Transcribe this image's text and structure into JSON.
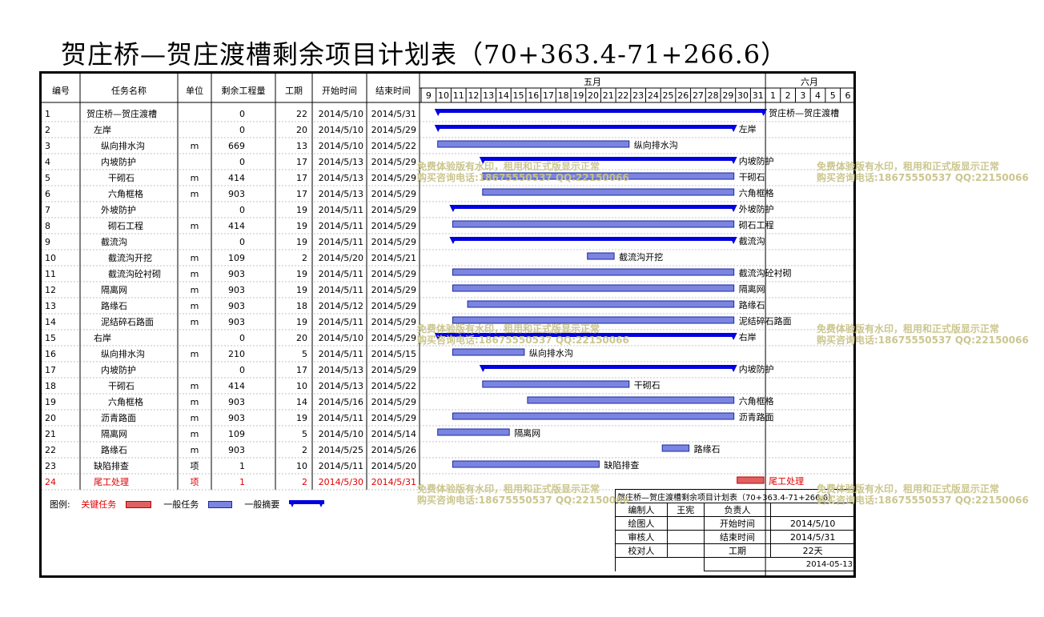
{
  "title": "贺庄桥—贺庄渡槽剩余项目计划表（70+363.4-71+266.6）",
  "columns": [
    "编号",
    "任务名称",
    "单位",
    "剩余工程量",
    "工期",
    "开始时间",
    "结束时间"
  ],
  "months": [
    "五月",
    "六月"
  ],
  "days": [
    9,
    10,
    11,
    12,
    13,
    14,
    15,
    16,
    17,
    18,
    19,
    20,
    21,
    22,
    23,
    24,
    25,
    26,
    27,
    28,
    29,
    30,
    31,
    1,
    2,
    3,
    4,
    5,
    6
  ],
  "colors": {
    "summary": "#0000e0",
    "normal_fill": "#7b84e0",
    "normal_border": "#1a2aa0",
    "critical": "#e00000",
    "watermark": "#c9c48a"
  },
  "chart_data": {
    "type": "gantt",
    "tasks": [
      {
        "id": "1",
        "name": "贺庄桥—贺庄渡槽",
        "unit": "",
        "qty": "0",
        "duration": "22",
        "start": "2014/5/10",
        "end": "2014/5/31",
        "kind": "summary",
        "indent": 0,
        "label": "贺庄桥—贺庄渡槽"
      },
      {
        "id": "2",
        "name": "左岸",
        "unit": "",
        "qty": "0",
        "duration": "20",
        "start": "2014/5/10",
        "end": "2014/5/29",
        "kind": "summary",
        "indent": 1,
        "label": "左岸"
      },
      {
        "id": "3",
        "name": "纵向排水沟",
        "unit": "m",
        "qty": "669",
        "duration": "13",
        "start": "2014/5/10",
        "end": "2014/5/22",
        "kind": "normal",
        "indent": 2,
        "label": "纵向排水沟"
      },
      {
        "id": "4",
        "name": "内坡防护",
        "unit": "",
        "qty": "0",
        "duration": "17",
        "start": "2014/5/13",
        "end": "2014/5/29",
        "kind": "summary",
        "indent": 2,
        "label": "内坡防护"
      },
      {
        "id": "5",
        "name": "干砌石",
        "unit": "m",
        "qty": "414",
        "duration": "17",
        "start": "2014/5/13",
        "end": "2014/5/29",
        "kind": "normal",
        "indent": 3,
        "label": "干砌石"
      },
      {
        "id": "6",
        "name": "六角框格",
        "unit": "m",
        "qty": "903",
        "duration": "17",
        "start": "2014/5/13",
        "end": "2014/5/29",
        "kind": "normal",
        "indent": 3,
        "label": "六角框格"
      },
      {
        "id": "7",
        "name": "外坡防护",
        "unit": "",
        "qty": "0",
        "duration": "19",
        "start": "2014/5/11",
        "end": "2014/5/29",
        "kind": "summary",
        "indent": 2,
        "label": "外坡防护"
      },
      {
        "id": "8",
        "name": "砌石工程",
        "unit": "m",
        "qty": "414",
        "duration": "19",
        "start": "2014/5/11",
        "end": "2014/5/29",
        "kind": "normal",
        "indent": 3,
        "label": "砌石工程"
      },
      {
        "id": "9",
        "name": "截流沟",
        "unit": "",
        "qty": "0",
        "duration": "19",
        "start": "2014/5/11",
        "end": "2014/5/29",
        "kind": "summary",
        "indent": 2,
        "label": "截流沟"
      },
      {
        "id": "10",
        "name": "截流沟开挖",
        "unit": "m",
        "qty": "109",
        "duration": "2",
        "start": "2014/5/20",
        "end": "2014/5/21",
        "kind": "normal",
        "indent": 3,
        "label": "截流沟开挖"
      },
      {
        "id": "11",
        "name": "截流沟砼衬砌",
        "unit": "m",
        "qty": "903",
        "duration": "19",
        "start": "2014/5/11",
        "end": "2014/5/29",
        "kind": "normal",
        "indent": 3,
        "label": "截流沟砼衬砌"
      },
      {
        "id": "12",
        "name": "隔离网",
        "unit": "m",
        "qty": "903",
        "duration": "19",
        "start": "2014/5/11",
        "end": "2014/5/29",
        "kind": "normal",
        "indent": 2,
        "label": "隔离网"
      },
      {
        "id": "13",
        "name": "路缘石",
        "unit": "m",
        "qty": "903",
        "duration": "18",
        "start": "2014/5/12",
        "end": "2014/5/29",
        "kind": "normal",
        "indent": 2,
        "label": "路缘石"
      },
      {
        "id": "14",
        "name": "泥结碎石路面",
        "unit": "m",
        "qty": "903",
        "duration": "19",
        "start": "2014/5/11",
        "end": "2014/5/29",
        "kind": "normal",
        "indent": 2,
        "label": "泥结碎石路面"
      },
      {
        "id": "15",
        "name": "右岸",
        "unit": "",
        "qty": "0",
        "duration": "20",
        "start": "2014/5/10",
        "end": "2014/5/29",
        "kind": "summary",
        "indent": 1,
        "label": "右岸"
      },
      {
        "id": "16",
        "name": "纵向排水沟",
        "unit": "m",
        "qty": "210",
        "duration": "5",
        "start": "2014/5/11",
        "end": "2014/5/15",
        "kind": "normal",
        "indent": 2,
        "label": "纵向排水沟"
      },
      {
        "id": "17",
        "name": "内坡防护",
        "unit": "",
        "qty": "0",
        "duration": "17",
        "start": "2014/5/13",
        "end": "2014/5/29",
        "kind": "summary",
        "indent": 2,
        "label": "内坡防护"
      },
      {
        "id": "18",
        "name": "干砌石",
        "unit": "m",
        "qty": "414",
        "duration": "10",
        "start": "2014/5/13",
        "end": "2014/5/22",
        "kind": "normal",
        "indent": 3,
        "label": "干砌石"
      },
      {
        "id": "19",
        "name": "六角框格",
        "unit": "m",
        "qty": "903",
        "duration": "14",
        "start": "2014/5/16",
        "end": "2014/5/29",
        "kind": "normal",
        "indent": 3,
        "label": "六角框格"
      },
      {
        "id": "20",
        "name": "沥青路面",
        "unit": "m",
        "qty": "903",
        "duration": "19",
        "start": "2014/5/11",
        "end": "2014/5/29",
        "kind": "normal",
        "indent": 2,
        "label": "沥青路面"
      },
      {
        "id": "21",
        "name": "隔离网",
        "unit": "m",
        "qty": "109",
        "duration": "5",
        "start": "2014/5/10",
        "end": "2014/5/14",
        "kind": "normal",
        "indent": 2,
        "label": "隔离网"
      },
      {
        "id": "22",
        "name": "路缘石",
        "unit": "m",
        "qty": "903",
        "duration": "2",
        "start": "2014/5/25",
        "end": "2014/5/26",
        "kind": "normal",
        "indent": 2,
        "label": "路缘石"
      },
      {
        "id": "23",
        "name": "缺陷排查",
        "unit": "项",
        "qty": "1",
        "duration": "10",
        "start": "2014/5/11",
        "end": "2014/5/20",
        "kind": "normal",
        "indent": 1,
        "label": "缺陷排查"
      },
      {
        "id": "24",
        "name": "尾工处理",
        "unit": "项",
        "qty": "1",
        "duration": "2",
        "start": "2014/5/30",
        "end": "2014/5/31",
        "kind": "critical",
        "indent": 1,
        "label": "尾工处理"
      }
    ]
  },
  "legend": {
    "prefix": "图例:",
    "critical": "关键任务",
    "normal": "一般任务",
    "summary": "一般摘要"
  },
  "title_block": {
    "header": "贺庄桥—贺庄渡槽剩余项目计划表（70+363.4-71+266.6）",
    "rows": [
      [
        "编制人",
        "王宪",
        "负责人",
        ""
      ],
      [
        "绘图人",
        "",
        "开始时间",
        "2014/5/10"
      ],
      [
        "审核人",
        "",
        "结束时间",
        "2014/5/31"
      ],
      [
        "校对人",
        "",
        "工期",
        "22天"
      ]
    ],
    "date": "2014-05-13"
  },
  "watermark": {
    "line1": "免费体验版有水印，租用和正式版显示正常",
    "line2": "购买咨询电话:18675550537 QQ:22150066"
  }
}
